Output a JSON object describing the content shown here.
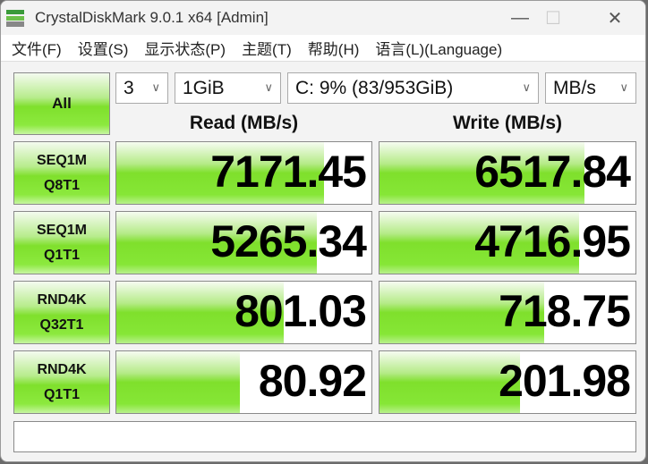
{
  "window": {
    "title": "CrystalDiskMark 9.0.1 x64 [Admin]"
  },
  "menu": [
    "文件(F)",
    "设置(S)",
    "显示状态(P)",
    "主题(T)",
    "帮助(H)",
    "语言(L)(Language)"
  ],
  "controls": {
    "all_label": "All",
    "count": "3",
    "size": "1GiB",
    "drive": "C: 9% (83/953GiB)",
    "unit": "MB/s"
  },
  "headers": {
    "read": "Read (MB/s)",
    "write": "Write (MB/s)"
  },
  "colors": {
    "bar_green": "#7fe02c"
  },
  "rows": [
    {
      "l1": "SEQ1M",
      "l2": "Q8T1",
      "read": "7171.45",
      "write": "6517.84",
      "read_fill": 0.815,
      "write_fill": 0.8
    },
    {
      "l1": "SEQ1M",
      "l2": "Q1T1",
      "read": "5265.34",
      "write": "4716.95",
      "read_fill": 0.787,
      "write_fill": 0.778
    },
    {
      "l1": "RND4K",
      "l2": "Q32T1",
      "read": "801.03",
      "write": "718.75",
      "read_fill": 0.655,
      "write_fill": 0.642
    },
    {
      "l1": "RND4K",
      "l2": "Q1T1",
      "read": "80.92",
      "write": "201.98",
      "read_fill": 0.484,
      "write_fill": 0.549
    }
  ],
  "status": ""
}
